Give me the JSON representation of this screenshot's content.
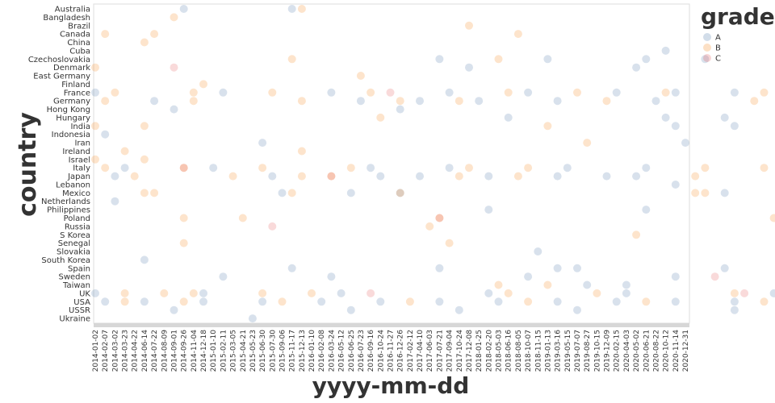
{
  "chart_data": {
    "type": "scatter",
    "xlabel": "yyyy-mm-dd",
    "ylabel": "country",
    "legend": {
      "title": "grade",
      "placement": "top-right",
      "entries": [
        "A",
        "B",
        "C"
      ]
    },
    "colors": {
      "A": "#4c78a8",
      "B": "#f58518",
      "C": "#e45756"
    },
    "grid": false,
    "x_ticks": [
      "2014-01-02",
      "2014-02-07",
      "2014-03-02",
      "2014-03-23",
      "2014-04-22",
      "2014-06-14",
      "2014-07-22",
      "2014-08-09",
      "2014-09-01",
      "2014-09-26",
      "2014-11-04",
      "2014-12-18",
      "2015-01-10",
      "2015-02-11",
      "2015-03-05",
      "2015-04-21",
      "2015-05-23",
      "2015-06-30",
      "2015-07-30",
      "2015-09-06",
      "2015-11-17",
      "2015-12-13",
      "2016-01-10",
      "2016-02-08",
      "2016-03-24",
      "2016-05-12",
      "2016-06-25",
      "2016-07-23",
      "2016-09-16",
      "2016-10-24",
      "2016-11-27",
      "2016-12-26",
      "2017-02-12",
      "2017-04-10",
      "2017-06-03",
      "2017-07-21",
      "2017-09-04",
      "2017-10-24",
      "2017-12-08",
      "2018-01-25",
      "2018-02-20",
      "2018-05-03",
      "2018-06-16",
      "2018-08-05",
      "2018-10-07",
      "2018-11-15",
      "2019-01-13",
      "2019-03-16",
      "2019-05-15",
      "2019-07-07",
      "2019-08-27",
      "2019-10-15",
      "2019-12-09",
      "2020-02-15",
      "2020-04-03",
      "2020-05-02",
      "2020-06-21",
      "2020-08-22",
      "2020-10-12",
      "2020-11-14",
      "2020-12-31"
    ],
    "countries": [
      "Australia",
      "Bangladesh",
      "Brazil",
      "Canada",
      "China",
      "Cuba",
      "Czechoslovakia",
      "Denmark",
      "East Germany",
      "Finland",
      "France",
      "Germany",
      "Hong Kong",
      "Hungary",
      "India",
      "Indonesia",
      "Iran",
      "Ireland",
      "Israel",
      "Italy",
      "Japan",
      "Lebanon",
      "Mexico",
      "Netherlands",
      "Philippines",
      "Poland",
      "Russia",
      "S Korea",
      "Senegal",
      "Slovakia",
      "South Korea",
      "Spain",
      "Sweden",
      "Taiwan",
      "UK",
      "USA",
      "USSR",
      "Ukraine"
    ],
    "series": [
      {
        "name": "A",
        "points": [
          [
            "Australia",
            9
          ],
          [
            "Australia",
            20
          ],
          [
            "Cuba",
            58
          ],
          [
            "Czechoslovakia",
            35
          ],
          [
            "Czechoslovakia",
            46
          ],
          [
            "Czechoslovakia",
            56
          ],
          [
            "Czechoslovakia",
            62
          ],
          [
            "Denmark",
            38
          ],
          [
            "Denmark",
            55
          ],
          [
            "France",
            0
          ],
          [
            "France",
            13
          ],
          [
            "France",
            24
          ],
          [
            "France",
            36
          ],
          [
            "France",
            44
          ],
          [
            "France",
            53
          ],
          [
            "France",
            59
          ],
          [
            "France",
            65
          ],
          [
            "France",
            71
          ],
          [
            "Germany",
            6
          ],
          [
            "Germany",
            27
          ],
          [
            "Germany",
            33
          ],
          [
            "Germany",
            39
          ],
          [
            "Germany",
            47
          ],
          [
            "Germany",
            57
          ],
          [
            "Hong Kong",
            8
          ],
          [
            "Hong Kong",
            31
          ],
          [
            "Hungary",
            42
          ],
          [
            "Hungary",
            58
          ],
          [
            "Hungary",
            64
          ],
          [
            "India",
            59
          ],
          [
            "India",
            65
          ],
          [
            "Indonesia",
            1
          ],
          [
            "Iran",
            17
          ],
          [
            "Iran",
            60
          ],
          [
            "Italy",
            3
          ],
          [
            "Italy",
            12
          ],
          [
            "Italy",
            28
          ],
          [
            "Italy",
            36
          ],
          [
            "Italy",
            48
          ],
          [
            "Italy",
            56
          ],
          [
            "Italy",
            71
          ],
          [
            "Japan",
            2
          ],
          [
            "Japan",
            18
          ],
          [
            "Japan",
            29
          ],
          [
            "Japan",
            33
          ],
          [
            "Japan",
            40
          ],
          [
            "Japan",
            47
          ],
          [
            "Japan",
            52
          ],
          [
            "Japan",
            55
          ],
          [
            "Lebanon",
            59
          ],
          [
            "Mexico",
            19
          ],
          [
            "Mexico",
            26
          ],
          [
            "Mexico",
            31
          ],
          [
            "Mexico",
            64
          ],
          [
            "Netherlands",
            2
          ],
          [
            "Philippines",
            40
          ],
          [
            "Philippines",
            56
          ],
          [
            "Slovakia",
            45
          ],
          [
            "South Korea",
            5
          ],
          [
            "Spain",
            20
          ],
          [
            "Spain",
            35
          ],
          [
            "Spain",
            47
          ],
          [
            "Spain",
            49
          ],
          [
            "Spain",
            64
          ],
          [
            "Sweden",
            13
          ],
          [
            "Sweden",
            24
          ],
          [
            "Sweden",
            44
          ],
          [
            "Sweden",
            59
          ],
          [
            "Sweden",
            70
          ],
          [
            "Taiwan",
            50
          ],
          [
            "Taiwan",
            54
          ],
          [
            "UK",
            0
          ],
          [
            "UK",
            11
          ],
          [
            "UK",
            25
          ],
          [
            "UK",
            40
          ],
          [
            "UK",
            54
          ],
          [
            "UK",
            69
          ],
          [
            "USA",
            1
          ],
          [
            "USA",
            5
          ],
          [
            "USA",
            11
          ],
          [
            "USA",
            17
          ],
          [
            "USA",
            23
          ],
          [
            "USA",
            29
          ],
          [
            "USA",
            35
          ],
          [
            "USA",
            41
          ],
          [
            "USA",
            47
          ],
          [
            "USA",
            53
          ],
          [
            "USA",
            59
          ],
          [
            "USA",
            65
          ],
          [
            "USA",
            71
          ],
          [
            "USSR",
            8
          ],
          [
            "USSR",
            26
          ],
          [
            "USSR",
            37
          ],
          [
            "USSR",
            49
          ],
          [
            "USSR",
            65
          ],
          [
            "Ukraine",
            16
          ]
        ]
      },
      {
        "name": "B",
        "points": [
          [
            "Australia",
            21
          ],
          [
            "Bangladesh",
            8
          ],
          [
            "Brazil",
            38
          ],
          [
            "Canada",
            1
          ],
          [
            "Canada",
            6
          ],
          [
            "Canada",
            43
          ],
          [
            "China",
            5
          ],
          [
            "Czechoslovakia",
            20
          ],
          [
            "Czechoslovakia",
            41
          ],
          [
            "Denmark",
            0
          ],
          [
            "East Germany",
            27
          ],
          [
            "Finland",
            11
          ],
          [
            "France",
            2
          ],
          [
            "France",
            10
          ],
          [
            "France",
            18
          ],
          [
            "France",
            28
          ],
          [
            "France",
            42
          ],
          [
            "France",
            49
          ],
          [
            "France",
            58
          ],
          [
            "France",
            68
          ],
          [
            "Germany",
            1
          ],
          [
            "Germany",
            10
          ],
          [
            "Germany",
            21
          ],
          [
            "Germany",
            31
          ],
          [
            "Germany",
            37
          ],
          [
            "Germany",
            52
          ],
          [
            "Germany",
            67
          ],
          [
            "Hungary",
            29
          ],
          [
            "India",
            0
          ],
          [
            "India",
            5
          ],
          [
            "India",
            46
          ],
          [
            "Iran",
            50
          ],
          [
            "Ireland",
            3
          ],
          [
            "Ireland",
            21
          ],
          [
            "Israel",
            0
          ],
          [
            "Israel",
            5
          ],
          [
            "Italy",
            1
          ],
          [
            "Italy",
            9
          ],
          [
            "Italy",
            17
          ],
          [
            "Italy",
            26
          ],
          [
            "Italy",
            38
          ],
          [
            "Italy",
            44
          ],
          [
            "Italy",
            62
          ],
          [
            "Italy",
            68
          ],
          [
            "Japan",
            4
          ],
          [
            "Japan",
            14
          ],
          [
            "Japan",
            21
          ],
          [
            "Japan",
            24
          ],
          [
            "Japan",
            37
          ],
          [
            "Japan",
            43
          ],
          [
            "Japan",
            61
          ],
          [
            "Mexico",
            5
          ],
          [
            "Mexico",
            6
          ],
          [
            "Mexico",
            20
          ],
          [
            "Mexico",
            31
          ],
          [
            "Mexico",
            61
          ],
          [
            "Mexico",
            62
          ],
          [
            "Poland",
            9
          ],
          [
            "Poland",
            15
          ],
          [
            "Poland",
            35
          ],
          [
            "Poland",
            69
          ],
          [
            "Russia",
            34
          ],
          [
            "S Korea",
            55
          ],
          [
            "Senegal",
            9
          ],
          [
            "Senegal",
            36
          ],
          [
            "Taiwan",
            41
          ],
          [
            "Taiwan",
            46
          ],
          [
            "UK",
            3
          ],
          [
            "UK",
            7
          ],
          [
            "UK",
            10
          ],
          [
            "UK",
            17
          ],
          [
            "UK",
            22
          ],
          [
            "UK",
            42
          ],
          [
            "UK",
            51
          ],
          [
            "UK",
            65
          ],
          [
            "USA",
            3
          ],
          [
            "USA",
            9
          ],
          [
            "USA",
            19
          ],
          [
            "USA",
            32
          ],
          [
            "USA",
            44
          ],
          [
            "USA",
            56
          ],
          [
            "USA",
            68
          ]
        ]
      },
      {
        "name": "C",
        "points": [
          [
            "Denmark",
            8
          ],
          [
            "Italy",
            9
          ],
          [
            "Japan",
            24
          ],
          [
            "Russia",
            18
          ],
          [
            "Sweden",
            63
          ],
          [
            "UK",
            28
          ],
          [
            "UK",
            66
          ],
          [
            "France",
            30
          ],
          [
            "Poland",
            35
          ]
        ]
      }
    ]
  }
}
